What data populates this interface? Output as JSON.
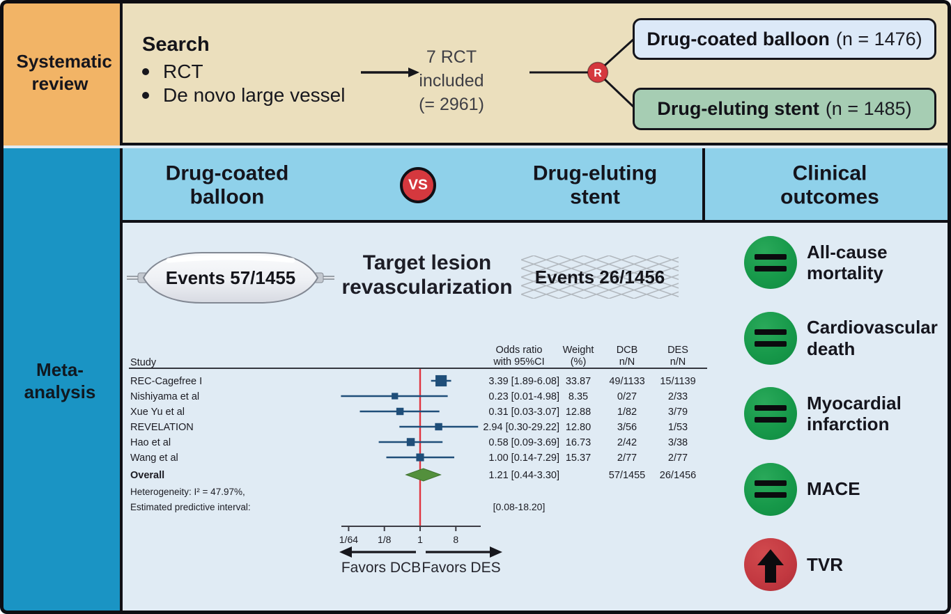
{
  "stages": {
    "systematic_review": "Systematic review",
    "meta_analysis": "Meta-analysis"
  },
  "search": {
    "heading": "Search",
    "bullets": [
      "RCT",
      "De novo large vessel"
    ],
    "included_lines": [
      "7 RCT",
      "included",
      "(= 2961)"
    ],
    "r_icon": "R",
    "arms": [
      {
        "name": "Drug-coated balloon",
        "n": "(n = 1476)"
      },
      {
        "name": "Drug-eluting stent",
        "n": "(n = 1485)"
      }
    ]
  },
  "comparison": {
    "left": "Drug-coated balloon",
    "vs": "VS",
    "right": "Drug-eluting stent",
    "outcomes_title": "Clinical outcomes"
  },
  "events": {
    "dcb": "Events 57/1455",
    "des": "Events 26/1456"
  },
  "chart_data": {
    "type": "forest",
    "title": "Target lesion revascularization",
    "scale": "log",
    "xlim": [
      0.01,
      34
    ],
    "columns": {
      "study": "Study",
      "or": [
        "Odds ratio",
        "with 95%CI"
      ],
      "weight": [
        "Weight",
        "(%)"
      ],
      "dcb": [
        "DCB",
        "n/N"
      ],
      "des": [
        "DES",
        "n/N"
      ]
    },
    "studies": [
      {
        "name": "REC-Cagefree I",
        "or": 3.39,
        "ci": [
          1.89,
          6.08
        ],
        "label": "3.39 [1.89-6.08]",
        "weight": "33.87",
        "dcb": "49/1133",
        "des": "15/1139"
      },
      {
        "name": "Nishiyama et al",
        "or": 0.23,
        "ci": [
          0.01,
          4.98
        ],
        "label": "0.23 [0.01-4.98]",
        "weight": "8.35",
        "dcb": "0/27",
        "des": "2/33"
      },
      {
        "name": "Xue Yu et al",
        "or": 0.31,
        "ci": [
          0.03,
          3.07
        ],
        "label": "0.31 [0.03-3.07]",
        "weight": "12.88",
        "dcb": "1/82",
        "des": "3/79"
      },
      {
        "name": "REVELATION",
        "or": 2.94,
        "ci": [
          0.3,
          29.22
        ],
        "label": "2.94 [0.30-29.22]",
        "weight": "12.80",
        "dcb": "3/56",
        "des": "1/53"
      },
      {
        "name": "Hao et al",
        "or": 0.58,
        "ci": [
          0.09,
          3.69
        ],
        "label": "0.58 [0.09-3.69]",
        "weight": "16.73",
        "dcb": "2/42",
        "des": "3/38"
      },
      {
        "name": "Wang et al",
        "or": 1.0,
        "ci": [
          0.14,
          7.29
        ],
        "label": "1.00 [0.14-7.29]",
        "weight": "15.37",
        "dcb": "2/77",
        "des": "2/77"
      }
    ],
    "overall": {
      "name": "Overall",
      "or": 1.21,
      "ci": [
        0.44,
        3.3
      ],
      "label": "1.21 [0.44-3.30]",
      "dcb": "57/1455",
      "des": "26/1456"
    },
    "heterogeneity": "Heterogeneity: I² = 47.97%,",
    "predictive_label": "Estimated predictive interval:",
    "predictive_value": "[0.08-18.20]",
    "axis": {
      "ref_line": 1,
      "ticks": [
        {
          "v": 0.015625,
          "label": "1/64"
        },
        {
          "v": 0.125,
          "label": "1/8"
        },
        {
          "v": 1,
          "label": "1"
        },
        {
          "v": 8,
          "label": "8"
        }
      ]
    },
    "favors": {
      "left": "Favors DCB",
      "right": "Favors DES"
    }
  },
  "outcomes": [
    {
      "label": "All-cause mortality",
      "icon": "equal"
    },
    {
      "label": "Cardiovascular death",
      "icon": "equal"
    },
    {
      "label": "Myocardial infarction",
      "icon": "equal"
    },
    {
      "label": "MACE",
      "icon": "equal"
    },
    {
      "label": "TVR",
      "icon": "arrow-up"
    }
  ],
  "colors": {
    "orange": "#f2b466",
    "tan": "#ebdfbd",
    "header_blue": "#8fd1ea",
    "sidebar_cyan": "#1a94c4",
    "panel_blue": "#e0ebf4",
    "dcb_box": "#dce9f8",
    "des_box": "#a6cdb3",
    "red": "#d5383e",
    "green": "#17994a",
    "marker_navy": "#1f4e79",
    "diamond_green": "#53903c",
    "ref_red": "#e0353f"
  }
}
